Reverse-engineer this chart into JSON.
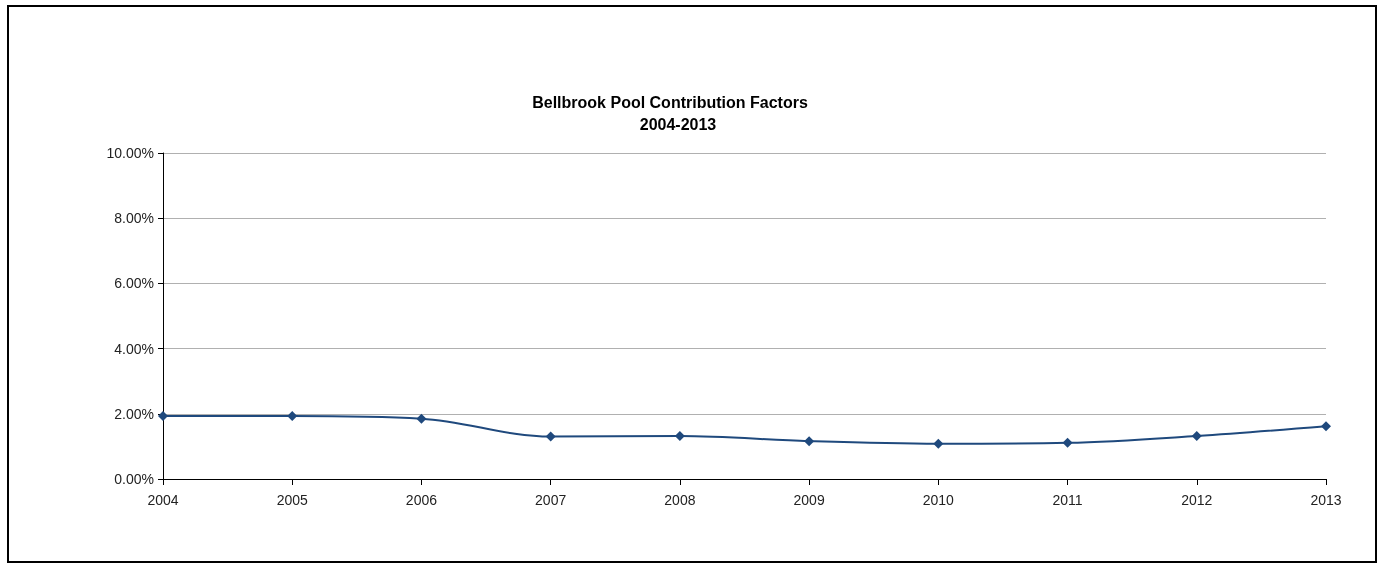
{
  "chart_data": {
    "type": "line",
    "title": "Bellbrook Pool Contribution Factors",
    "subtitle": "2004-2013",
    "categories": [
      "2004",
      "2005",
      "2006",
      "2007",
      "2008",
      "2009",
      "2010",
      "2011",
      "2012",
      "2013"
    ],
    "series": [
      {
        "color": "#1f497d",
        "values": [
          1.93,
          1.93,
          1.85,
          1.3,
          1.32,
          1.16,
          1.08,
          1.11,
          1.32,
          1.62
        ]
      }
    ],
    "ylim": [
      0,
      10
    ],
    "yticks": [
      {
        "value": 0,
        "label": "0.00%"
      },
      {
        "value": 2,
        "label": "2.00%"
      },
      {
        "value": 4,
        "label": "4.00%"
      },
      {
        "value": 6,
        "label": "6.00%"
      },
      {
        "value": 8,
        "label": "8.00%"
      },
      {
        "value": 10,
        "label": "10.00%"
      }
    ],
    "grid": "y",
    "marker": "diamond",
    "line_style": "solid"
  }
}
